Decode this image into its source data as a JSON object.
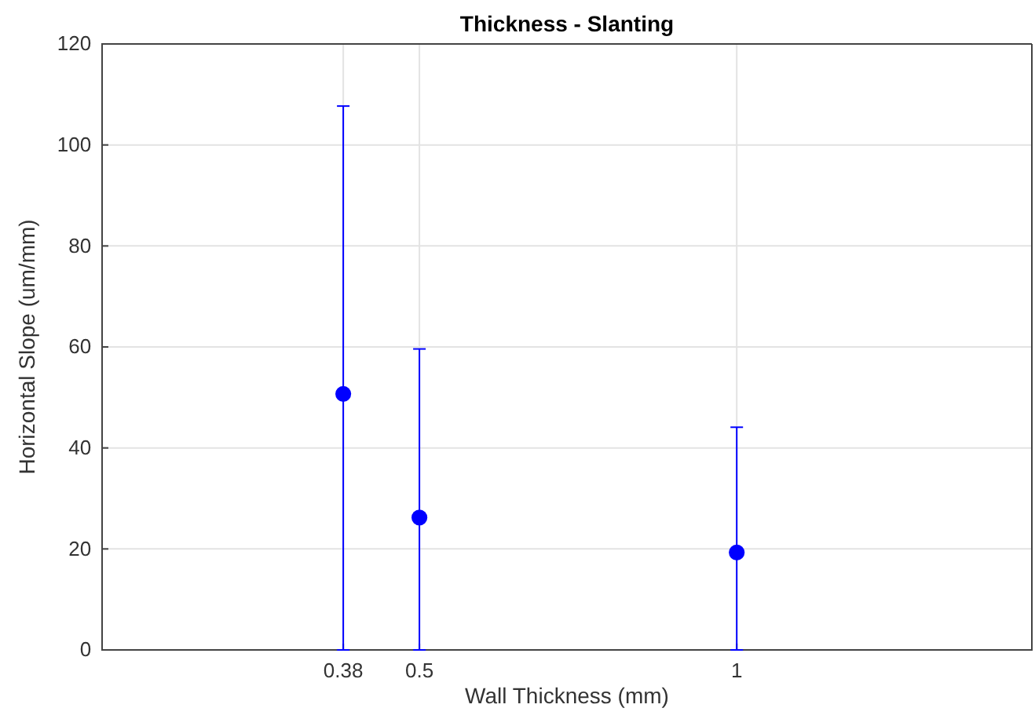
{
  "chart_data": {
    "type": "scatter",
    "title": "Thickness - Slanting",
    "xlabel": "Wall Thickness (mm)",
    "ylabel": "Horizontal Slope (um/mm)",
    "x": [
      0.38,
      0.5,
      1
    ],
    "series": [
      {
        "color": "#0000ff",
        "values": [
          50.7,
          26.2,
          19.3
        ],
        "errors": [
          [
            0,
            107.7
          ],
          [
            0,
            59.6
          ],
          [
            0,
            44.1
          ]
        ]
      }
    ],
    "xlim": [
      0,
      1.465
    ],
    "xticks": [
      0.38,
      0.5,
      1
    ],
    "ylim": [
      0,
      120
    ],
    "yticks": [
      0,
      20,
      40,
      60,
      80,
      100,
      120
    ],
    "grid": true,
    "marker": "circle"
  }
}
